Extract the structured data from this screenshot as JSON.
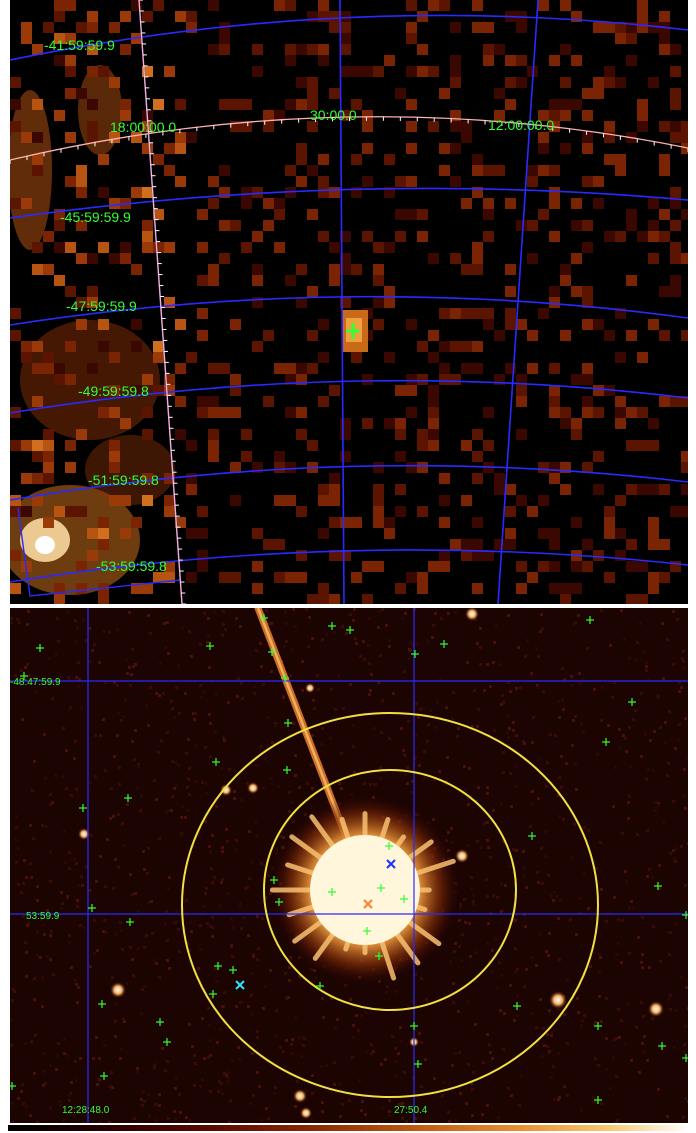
{
  "top_panel": {
    "dec_labels": [
      "-41:59:59.9",
      "-45:59:59.9",
      "-47:59:59.9",
      "-49:59:59.8",
      "-51:59:59.8",
      "-53:59:59.8"
    ],
    "ra_labels": [
      "18:00:00.0",
      "30:00.0",
      "12:00:00.0"
    ]
  },
  "bottom_panel": {
    "dec_labels": [
      "-48:47:59.9",
      "53:59.9"
    ],
    "ra_labels": [
      "12:28:48.0",
      "27:50.4"
    ]
  },
  "colors": {
    "grid": "#2a2aff",
    "label": "#33ff33",
    "ecliptic": "#ffb0b0",
    "circle": "#f0e040",
    "marker_blue": "#2030ff",
    "marker_cyan": "#30e0ff",
    "marker_orange": "#ff8030"
  }
}
